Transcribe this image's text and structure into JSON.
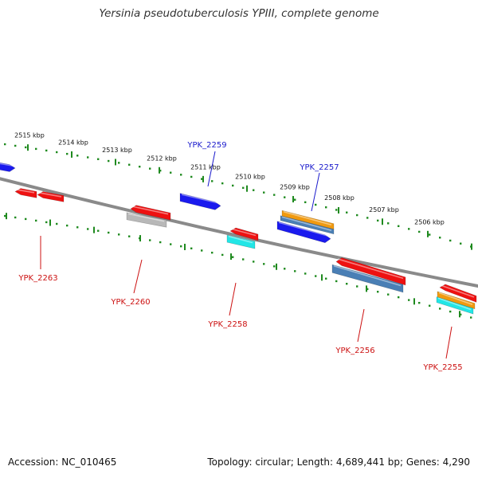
{
  "title": "Yersinia pseudotuberculosis YPIII, complete genome",
  "footer": {
    "accession": "Accession: NC_010465",
    "summary": "Topology: circular; Length: 4,689,441 bp; Genes: 4,290"
  },
  "colors": {
    "backbone": "#8a8a8a",
    "tick": "#1f8a1f",
    "label_above": "#1a1acc",
    "label_below": "#cc1111",
    "gene_red": "#ee1111",
    "gene_blue": "#1a1aee",
    "gene_orange": "#f09a10",
    "gene_steel": "#4a7fb5",
    "gene_grey": "#b8b8b8",
    "gene_cyan": "#22e6e6"
  },
  "kbp_labels": [
    "2515 kbp",
    "2514 kbp",
    "2513 kbp",
    "2512 kbp",
    "2511 kbp",
    "2510 kbp",
    "2509 kbp",
    "2508 kbp",
    "2507 kbp",
    "2506 kbp"
  ],
  "genes_above": [
    "YPK_2259",
    "YPK_2257"
  ],
  "genes_below": [
    "YPK_2263",
    "YPK_2260",
    "YPK_2258",
    "YPK_2256",
    "YPK_2255"
  ]
}
